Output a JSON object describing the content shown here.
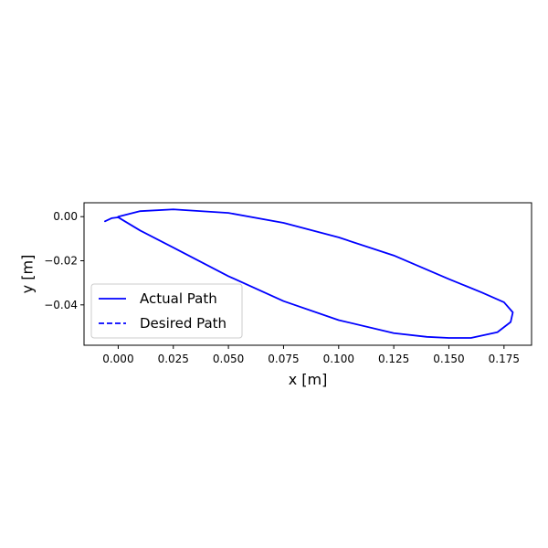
{
  "chart_data": {
    "type": "line",
    "title": "",
    "xlabel": "x [m]",
    "ylabel": "y [m]",
    "xlim": [
      -0.0155,
      0.1875
    ],
    "ylim": [
      -0.0583,
      0.0063
    ],
    "xticks": [
      0.0,
      0.025,
      0.05,
      0.075,
      0.1,
      0.125,
      0.15,
      0.175
    ],
    "xtick_labels": [
      "0.000",
      "0.025",
      "0.050",
      "0.075",
      "0.100",
      "0.125",
      "0.150",
      "0.175"
    ],
    "yticks": [
      0.0,
      -0.02,
      -0.04
    ],
    "ytick_labels": [
      "0.00",
      "−0.02",
      "−0.04"
    ],
    "grid": false,
    "legend_position": "lower-left",
    "series": [
      {
        "name": "Actual Path",
        "style": "solid",
        "color": "#0000ff",
        "x": [
          0.0,
          0.01,
          0.025,
          0.05,
          0.075,
          0.1,
          0.125,
          0.15,
          0.165,
          0.175,
          0.179,
          0.178,
          0.172,
          0.16,
          0.15,
          0.14,
          0.125,
          0.1,
          0.075,
          0.05,
          0.025,
          0.01,
          0.0,
          -0.003,
          -0.006
        ],
        "y": [
          0.0,
          0.0025,
          0.0033,
          0.0017,
          -0.0028,
          -0.0094,
          -0.0176,
          -0.0283,
          -0.0344,
          -0.0388,
          -0.0434,
          -0.0478,
          -0.0524,
          -0.055,
          -0.055,
          -0.0545,
          -0.0528,
          -0.0469,
          -0.0383,
          -0.027,
          -0.014,
          -0.0063,
          -0.0003,
          -0.0007,
          -0.0021
        ]
      },
      {
        "name": "Desired Path",
        "style": "dashed",
        "color": "#0000ff",
        "x": [],
        "y": []
      }
    ]
  }
}
